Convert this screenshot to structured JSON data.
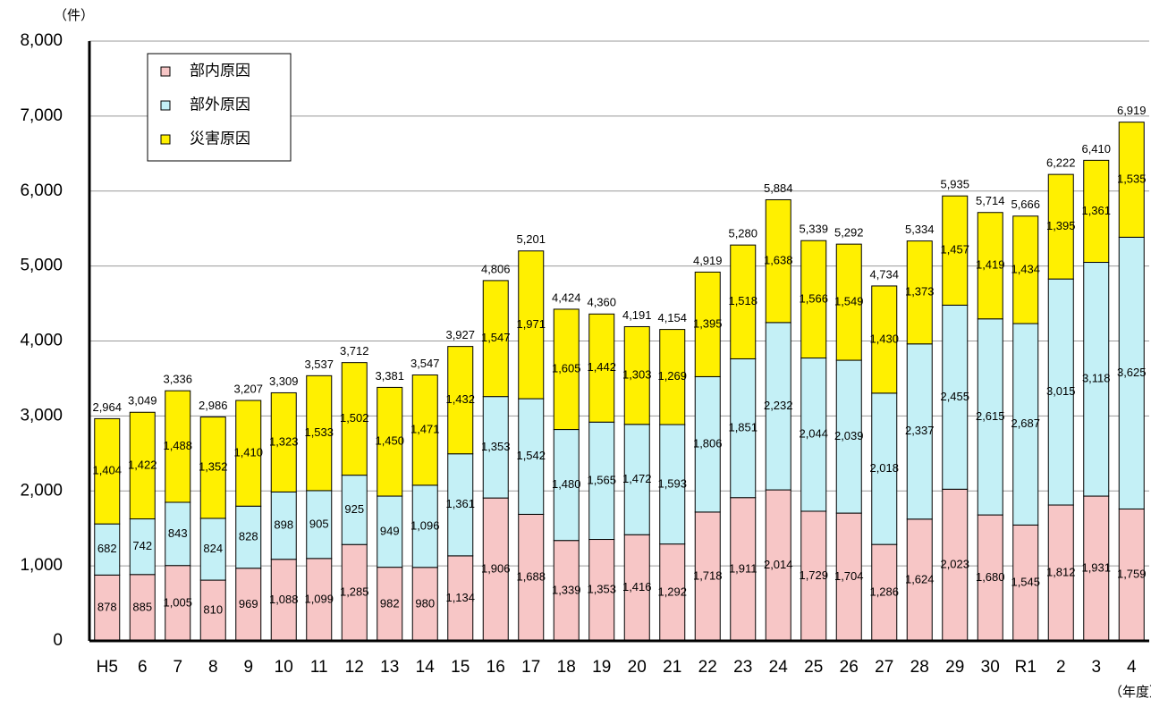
{
  "chart_data": {
    "type": "stacked-bar",
    "y_axis_label": "（件）",
    "x_axis_label": "（年度）",
    "categories": [
      "H5",
      "6",
      "7",
      "8",
      "9",
      "10",
      "11",
      "12",
      "13",
      "14",
      "15",
      "16",
      "17",
      "18",
      "19",
      "20",
      "21",
      "22",
      "23",
      "24",
      "25",
      "26",
      "27",
      "28",
      "29",
      "30",
      "R1",
      "2",
      "3",
      "4"
    ],
    "series": [
      {
        "name": "部内原因",
        "color": "#f7c6c6",
        "values": [
          878,
          885,
          1005,
          810,
          969,
          1088,
          1099,
          1285,
          982,
          980,
          1134,
          1906,
          1688,
          1339,
          1353,
          1416,
          1292,
          1718,
          1911,
          2014,
          1729,
          1704,
          1286,
          1624,
          2023,
          1680,
          1545,
          1812,
          1931,
          1759
        ],
        "value_labels": [
          "878",
          "885",
          "1,005",
          "810",
          "969",
          "1,088",
          "1,099",
          "1,285",
          "982",
          "980",
          "1,134",
          "1,906",
          "1,688",
          "1,339",
          "1,353",
          "1,416",
          "1,292",
          "1,718",
          "1,911",
          "2,014",
          "1,729",
          "1,704",
          "1,286",
          "1,624",
          "2,023",
          "1,680",
          "1,545",
          "1,812",
          "1,931",
          "1,759"
        ]
      },
      {
        "name": "部外原因",
        "color": "#c4f0f6",
        "values": [
          682,
          742,
          843,
          824,
          828,
          898,
          905,
          925,
          949,
          1096,
          1361,
          1353,
          1542,
          1480,
          1565,
          1472,
          1593,
          1806,
          1851,
          2232,
          2044,
          2039,
          2018,
          2337,
          2455,
          2615,
          2687,
          3015,
          3118,
          3625
        ],
        "value_labels": [
          "682",
          "742",
          "843",
          "824",
          "828",
          "898",
          "905",
          "925",
          "949",
          "1,096",
          "1,361",
          "1,353",
          "1,542",
          "1,480",
          "1,565",
          "1,472",
          "1,593",
          "1,806",
          "1,851",
          "2,232",
          "2,044",
          "2,039",
          "2,018",
          "2,337",
          "2,455",
          "2,615",
          "2,687",
          "3,015",
          "3,118",
          "3,625"
        ]
      },
      {
        "name": "災害原因",
        "color": "#fff000",
        "values": [
          1404,
          1422,
          1488,
          1352,
          1410,
          1323,
          1533,
          1502,
          1450,
          1471,
          1432,
          1547,
          1971,
          1605,
          1442,
          1303,
          1269,
          1395,
          1518,
          1638,
          1566,
          1549,
          1430,
          1373,
          1457,
          1419,
          1434,
          1395,
          1361,
          1535
        ],
        "value_labels": [
          "1,404",
          "1,422",
          "1,488",
          "1,352",
          "1,410",
          "1,323",
          "1,533",
          "1,502",
          "1,450",
          "1,471",
          "1,432",
          "1,547",
          "1,971",
          "1,605",
          "1,442",
          "1,303",
          "1,269",
          "1,395",
          "1,518",
          "1,638",
          "1,566",
          "1,549",
          "1,430",
          "1,373",
          "1,457",
          "1,419",
          "1,434",
          "1,395",
          "1,361",
          "1,535"
        ]
      }
    ],
    "totals": [
      2964,
      3049,
      3336,
      2986,
      3207,
      3309,
      3537,
      3712,
      3381,
      3547,
      3927,
      4806,
      5201,
      4424,
      4360,
      4191,
      4154,
      4919,
      5280,
      5884,
      5339,
      5292,
      4734,
      5334,
      5935,
      5714,
      5666,
      6222,
      6410,
      6919
    ],
    "total_labels": [
      "2,964",
      "3,049",
      "3,336",
      "2,986",
      "3,207",
      "3,309",
      "3,537",
      "3,712",
      "3,381",
      "3,547",
      "3,927",
      "4,806",
      "5,201",
      "4,424",
      "4,360",
      "4,191",
      "4,154",
      "4,919",
      "5,280",
      "5,884",
      "5,339",
      "5,292",
      "4,734",
      "5,334",
      "5,935",
      "5,714",
      "5,666",
      "6,222",
      "6,410",
      "6,919"
    ],
    "ylim": [
      0,
      8000
    ],
    "yticks": [
      0,
      {
        "value": 1000,
        "label": "1,000"
      },
      {
        "value": 2000,
        "label": "2,000"
      },
      {
        "value": 3000,
        "label": "3,000"
      },
      {
        "value": 4000,
        "label": "4,000"
      },
      {
        "value": 5000,
        "label": "5,000"
      },
      {
        "value": 6000,
        "label": "6,000"
      },
      {
        "value": 7000,
        "label": "7,000"
      },
      {
        "value": 8000,
        "label": "8,000"
      }
    ],
    "grid": true
  }
}
